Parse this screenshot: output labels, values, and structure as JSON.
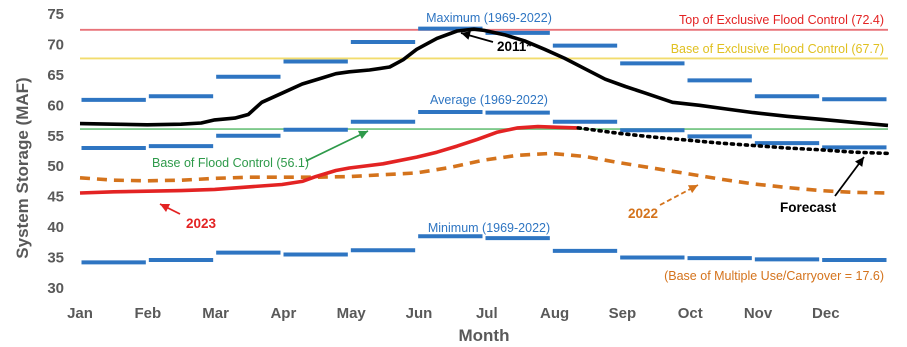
{
  "chart_data": {
    "type": "line",
    "xlabel": "Month",
    "ylabel": "System Storage (MAF)",
    "categories": [
      "Jan",
      "Feb",
      "Mar",
      "Apr",
      "May",
      "Jun",
      "Jul",
      "Aug",
      "Sep",
      "Oct",
      "Nov",
      "Dec"
    ],
    "ylim": [
      30,
      75
    ],
    "yticks": [
      30,
      35,
      40,
      45,
      50,
      55,
      60,
      65,
      70,
      75
    ],
    "grid": false,
    "reference_lines": [
      {
        "label": "Top of Exclusive Flood Control (72.4)",
        "value": 72.4,
        "color": "#e8737a"
      },
      {
        "label": "Base of Exclusive Flood Control (67.7)",
        "value": 67.7,
        "color": "#f2dc6e"
      },
      {
        "label": "Base of Flood Control (56.1)",
        "value": 56.1,
        "color": "#7ec98b"
      }
    ],
    "envelopes": [
      {
        "label": "Maximum (1969-2022)",
        "values": [
          60.9,
          61.5,
          64.7,
          67.2,
          70.4,
          72.6,
          71.9,
          69.8,
          66.9,
          64.1,
          61.5,
          61.0
        ]
      },
      {
        "label": "Average (1969-2022)",
        "values": [
          53.0,
          53.3,
          55.0,
          56.0,
          57.3,
          58.9,
          58.8,
          57.3,
          55.9,
          54.9,
          53.8,
          53.1
        ]
      },
      {
        "label": "Minimum (1969-2022)",
        "values": [
          34.2,
          34.6,
          35.8,
          35.5,
          36.2,
          38.5,
          38.2,
          36.1,
          35.0,
          34.9,
          34.7,
          34.6
        ]
      }
    ],
    "series": [
      {
        "name": "2011*",
        "style": "solid",
        "color": "#000000",
        "x": [
          0,
          0.5,
          1,
          1.5,
          1.8,
          2.0,
          2.3,
          2.5,
          2.7,
          3.0,
          3.3,
          3.6,
          3.8,
          4.0,
          4.3,
          4.6,
          4.8,
          5.0,
          5.3,
          5.6,
          5.85,
          6.0,
          6.3,
          6.6,
          6.9,
          7.2,
          7.5,
          7.8,
          8.1,
          8.4,
          8.8,
          9.2,
          9.6,
          10.0,
          10.5,
          11.0,
          11.5,
          12.0
        ],
        "values": [
          57.0,
          56.9,
          56.8,
          56.9,
          57.1,
          57.6,
          57.9,
          58.5,
          60.5,
          62.0,
          63.5,
          64.5,
          65.2,
          65.5,
          65.8,
          66.3,
          67.5,
          69.2,
          71.0,
          72.2,
          72.5,
          72.3,
          71.6,
          70.6,
          69.2,
          67.7,
          66.0,
          64.3,
          63.1,
          62.0,
          60.5,
          60.0,
          59.4,
          58.8,
          58.2,
          57.7,
          57.2,
          56.7
        ]
      },
      {
        "name": "2023",
        "style": "solid",
        "color": "#e32323",
        "x": [
          0,
          0.5,
          1,
          1.5,
          2.0,
          2.5,
          3.0,
          3.3,
          3.5,
          3.8,
          4.0,
          4.5,
          5.0,
          5.3,
          5.6,
          5.9,
          6.2,
          6.5,
          6.8,
          7.1,
          7.4
        ],
        "values": [
          45.6,
          45.8,
          45.9,
          46.0,
          46.2,
          46.6,
          47.0,
          47.5,
          48.3,
          49.3,
          49.7,
          50.4,
          51.5,
          52.3,
          53.3,
          54.4,
          55.6,
          56.3,
          56.5,
          56.4,
          56.3
        ]
      },
      {
        "name": "Forecast",
        "style": "dotted",
        "color": "#000000",
        "x": [
          7.4,
          8.0,
          8.5,
          9.0,
          9.5,
          10.0,
          10.5,
          11.0,
          11.5,
          12.0
        ],
        "values": [
          56.3,
          55.4,
          54.8,
          54.3,
          53.8,
          53.4,
          53.0,
          52.7,
          52.3,
          52.1
        ]
      },
      {
        "name": "2022",
        "style": "dashed",
        "color": "#d4731c",
        "x": [
          0,
          0.5,
          1.0,
          1.5,
          2.0,
          2.5,
          3.0,
          3.5,
          4.0,
          4.5,
          5.0,
          5.5,
          6.0,
          6.5,
          7.0,
          7.5,
          8.0,
          8.5,
          9.0,
          9.5,
          10.0,
          10.5,
          11.0,
          11.5,
          12.0
        ],
        "values": [
          48.1,
          47.7,
          47.6,
          47.7,
          48.0,
          48.2,
          48.2,
          48.2,
          48.3,
          48.6,
          48.9,
          49.8,
          51.0,
          51.8,
          52.1,
          51.6,
          50.6,
          49.7,
          48.8,
          47.9,
          47.1,
          46.5,
          46.0,
          45.7,
          45.6
        ]
      }
    ],
    "annotations": [
      {
        "text": "(Base of Multiple Use/Carryover = 17.6)",
        "color": "#d4731c"
      }
    ]
  }
}
